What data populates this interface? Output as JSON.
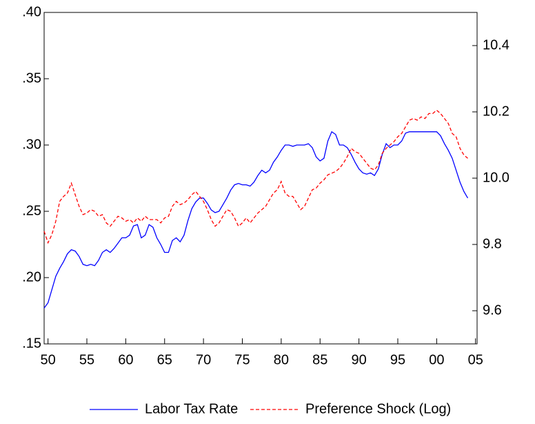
{
  "chart_data": {
    "type": "line",
    "x": [
      1949.5,
      1950,
      1950.5,
      1951,
      1951.5,
      1952,
      1952.5,
      1953,
      1953.5,
      1954,
      1954.5,
      1955,
      1955.5,
      1956,
      1956.5,
      1957,
      1957.5,
      1958,
      1958.5,
      1959,
      1959.5,
      1960,
      1960.5,
      1961,
      1961.5,
      1962,
      1962.5,
      1963,
      1963.5,
      1964,
      1964.5,
      1965,
      1965.5,
      1966,
      1966.5,
      1967,
      1967.5,
      1968,
      1968.5,
      1969,
      1969.5,
      1970,
      1970.5,
      1971,
      1971.5,
      1972,
      1972.5,
      1973,
      1973.5,
      1974,
      1974.5,
      1975,
      1975.5,
      1976,
      1976.5,
      1977,
      1977.5,
      1978,
      1978.5,
      1979,
      1979.5,
      1980,
      1980.5,
      1981,
      1981.5,
      1982,
      1982.5,
      1983,
      1983.5,
      1984,
      1984.5,
      1985,
      1985.5,
      1986,
      1986.5,
      1987,
      1987.5,
      1988,
      1988.5,
      1989,
      1989.5,
      1990,
      1990.5,
      1991,
      1991.5,
      1992,
      1992.5,
      1993,
      1993.5,
      1994,
      1994.5,
      1995,
      1995.5,
      1996,
      1996.5,
      1997,
      1997.5,
      1998,
      1998.5,
      1999,
      1999.5,
      2000,
      2000.5,
      2001,
      2001.5,
      2002,
      2002.5,
      2003,
      2003.5,
      2004
    ],
    "series": [
      {
        "name": "Labor Tax Rate",
        "color": "#0000ff",
        "dash": false,
        "axis": "y",
        "values": [
          0.177,
          0.181,
          0.191,
          0.201,
          0.207,
          0.212,
          0.218,
          0.221,
          0.22,
          0.216,
          0.21,
          0.209,
          0.21,
          0.209,
          0.213,
          0.219,
          0.221,
          0.219,
          0.222,
          0.226,
          0.23,
          0.23,
          0.232,
          0.239,
          0.24,
          0.23,
          0.232,
          0.24,
          0.238,
          0.23,
          0.225,
          0.219,
          0.219,
          0.228,
          0.23,
          0.227,
          0.232,
          0.243,
          0.252,
          0.257,
          0.26,
          0.26,
          0.256,
          0.251,
          0.249,
          0.25,
          0.255,
          0.26,
          0.266,
          0.27,
          0.271,
          0.27,
          0.27,
          0.269,
          0.272,
          0.277,
          0.281,
          0.279,
          0.281,
          0.287,
          0.291,
          0.296,
          0.3,
          0.3,
          0.299,
          0.3,
          0.3,
          0.3,
          0.301,
          0.298,
          0.291,
          0.288,
          0.29,
          0.303,
          0.31,
          0.308,
          0.3,
          0.3,
          0.298,
          0.293,
          0.287,
          0.282,
          0.279,
          0.278,
          0.279,
          0.277,
          0.282,
          0.293,
          0.301,
          0.298,
          0.3,
          0.3,
          0.303,
          0.309,
          0.31,
          0.31,
          0.31,
          0.31,
          0.31,
          0.31,
          0.31,
          0.31,
          0.307,
          0.301,
          0.296,
          0.29,
          0.281,
          0.272,
          0.265,
          0.26
        ]
      },
      {
        "name": "Preference Shock (Log)",
        "color": "#ff0000",
        "dash": true,
        "axis": "y2",
        "values": [
          9.84,
          9.805,
          9.83,
          9.87,
          9.93,
          9.945,
          9.955,
          9.985,
          9.95,
          9.915,
          9.89,
          9.895,
          9.905,
          9.9,
          9.885,
          9.89,
          9.865,
          9.855,
          9.87,
          9.885,
          9.88,
          9.87,
          9.875,
          9.865,
          9.88,
          9.87,
          9.885,
          9.875,
          9.875,
          9.875,
          9.865,
          9.88,
          9.885,
          9.915,
          9.93,
          9.92,
          9.925,
          9.935,
          9.95,
          9.96,
          9.945,
          9.93,
          9.905,
          9.875,
          9.855,
          9.865,
          9.885,
          9.905,
          9.9,
          9.88,
          9.855,
          9.865,
          9.88,
          9.865,
          9.88,
          9.895,
          9.905,
          9.915,
          9.935,
          9.955,
          9.965,
          9.99,
          9.955,
          9.945,
          9.945,
          9.925,
          9.905,
          9.915,
          9.94,
          9.965,
          9.97,
          9.985,
          9.995,
          10.01,
          10.015,
          10.02,
          10.03,
          10.045,
          10.065,
          10.09,
          10.08,
          10.075,
          10.06,
          10.045,
          10.03,
          10.025,
          10.04,
          10.075,
          10.09,
          10.1,
          10.11,
          10.125,
          10.135,
          10.155,
          10.175,
          10.18,
          10.175,
          10.185,
          10.18,
          10.195,
          10.195,
          10.205,
          10.195,
          10.18,
          10.165,
          10.135,
          10.125,
          10.09,
          10.07,
          10.06
        ]
      }
    ],
    "xlim": [
      1949.5,
      2005.2
    ],
    "xticks": [
      {
        "value": 1950,
        "label": "50"
      },
      {
        "value": 1955,
        "label": "55"
      },
      {
        "value": 1960,
        "label": "60"
      },
      {
        "value": 1965,
        "label": "65"
      },
      {
        "value": 1970,
        "label": "70"
      },
      {
        "value": 1975,
        "label": "75"
      },
      {
        "value": 1980,
        "label": "80"
      },
      {
        "value": 1985,
        "label": "85"
      },
      {
        "value": 1990,
        "label": "90"
      },
      {
        "value": 1995,
        "label": "95"
      },
      {
        "value": 2000,
        "label": "00"
      },
      {
        "value": 2005,
        "label": "05"
      }
    ],
    "ylim": [
      0.15,
      0.4
    ],
    "yticks": [
      {
        "value": 0.15,
        "label": ".15"
      },
      {
        "value": 0.2,
        "label": ".20"
      },
      {
        "value": 0.25,
        "label": ".25"
      },
      {
        "value": 0.3,
        "label": ".30"
      },
      {
        "value": 0.35,
        "label": ".35"
      },
      {
        "value": 0.4,
        "label": ".40"
      }
    ],
    "y2lim": [
      9.5,
      10.5
    ],
    "y2ticks": [
      9.6,
      9.8,
      {
        "value": 10.0,
        "label": "10.0"
      },
      10.2,
      10.4
    ],
    "grid": false,
    "legend": "bottom"
  }
}
